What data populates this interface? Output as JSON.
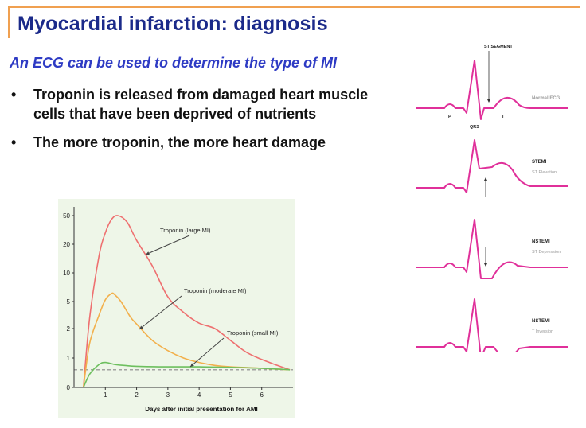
{
  "slide": {
    "title": "Myocardial infarction: diagnosis",
    "subtitle": "An ECG can be used to determine the type of MI",
    "bullet_symbol": "•",
    "bullets": [
      "Troponin is released from damaged heart muscle cells that have been deprived of nutrients",
      "The more troponin, the more heart damage"
    ]
  },
  "chart_data": {
    "type": "line",
    "xlabel": "Days after initial presentation for AMI",
    "x_ticks": [
      "1",
      "2",
      "3",
      "4",
      "5",
      "6"
    ],
    "y_ticks": [
      "0",
      "1",
      "2",
      "5",
      "10",
      "20",
      "50"
    ],
    "y_scale": "nonlinear",
    "xlim": [
      0,
      7
    ],
    "grid": false,
    "reference_line": "dashed",
    "series": [
      {
        "name": "Troponin (large MI)",
        "color": "#ee7070",
        "x": [
          0.3,
          0.5,
          0.8,
          1.0,
          1.2,
          1.4,
          1.7,
          2.0,
          2.5,
          3.0,
          3.5,
          4.0,
          4.5,
          5.0,
          5.5,
          6.0,
          6.5,
          6.9
        ],
        "y": [
          0,
          3.2,
          16,
          32,
          46,
          50,
          43,
          24,
          12.5,
          5.8,
          3.8,
          2.6,
          2.0,
          1.6,
          1.2,
          0.95,
          0.75,
          0.6
        ]
      },
      {
        "name": "Troponin (moderate MI)",
        "color": "#f2b04c",
        "x": [
          0.3,
          0.5,
          0.8,
          1.0,
          1.2,
          1.3,
          1.5,
          1.8,
          2.0,
          2.5,
          3.0,
          3.5,
          4.0,
          4.5,
          5.0,
          6.0,
          6.9
        ],
        "y": [
          0,
          1.5,
          3.5,
          5.3,
          6.4,
          6.2,
          5.0,
          3.3,
          2.5,
          1.6,
          1.25,
          1.0,
          0.85,
          0.75,
          0.7,
          0.65,
          0.6
        ]
      },
      {
        "name": "Troponin (small MI)",
        "color": "#6dbf5e",
        "x": [
          0.3,
          0.5,
          0.8,
          1.0,
          1.3,
          1.6,
          2.0,
          3.0,
          4.0,
          5.0,
          6.0,
          6.9
        ],
        "y": [
          0,
          0.45,
          0.78,
          0.85,
          0.78,
          0.75,
          0.72,
          0.7,
          0.7,
          0.68,
          0.65,
          0.6
        ]
      }
    ]
  },
  "ecg": {
    "traces": [
      {
        "name": "Normal ECG",
        "type": "normal"
      },
      {
        "name": "STEMI",
        "subname": "ST Elevation",
        "type": "elevation"
      },
      {
        "name": "NSTEMI",
        "subname": "ST Depression",
        "type": "depression"
      },
      {
        "name": "NSTEMI",
        "subname": "T Inversion",
        "type": "inversion"
      }
    ],
    "labels": {
      "st_segment": "ST SEGMENT",
      "p": "P",
      "qrs": "QRS",
      "t": "T"
    },
    "line_color": "#e0309a"
  }
}
